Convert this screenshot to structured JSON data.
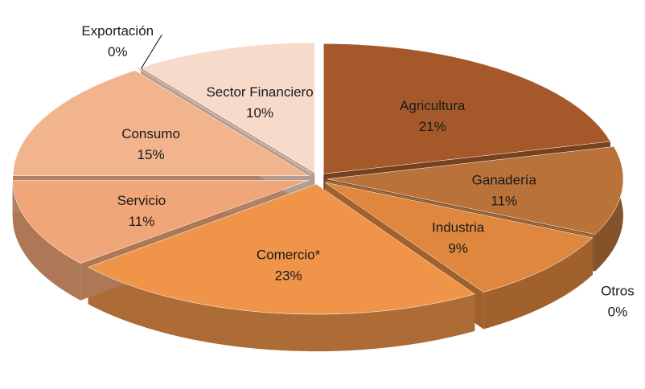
{
  "chart_data": {
    "type": "pie3d",
    "categories": [
      "Agricultura",
      "Ganadería",
      "Otros",
      "Industria",
      "Comercio*",
      "Servicio",
      "Consumo",
      "Exportación",
      "Sector Financiero"
    ],
    "values": [
      21,
      11,
      0,
      9,
      23,
      11,
      15,
      0,
      10
    ],
    "value_labels": [
      "21%",
      "11%",
      "0%",
      "9%",
      "23%",
      "11%",
      "15%",
      "0%",
      "10%"
    ],
    "colors": [
      "#a5592a",
      "#b9733a",
      "#c27b40",
      "#e0873f",
      "#f0944a",
      "#f1a679",
      "#f2b48d",
      "#f5c6a8",
      "#f8dacb"
    ]
  }
}
